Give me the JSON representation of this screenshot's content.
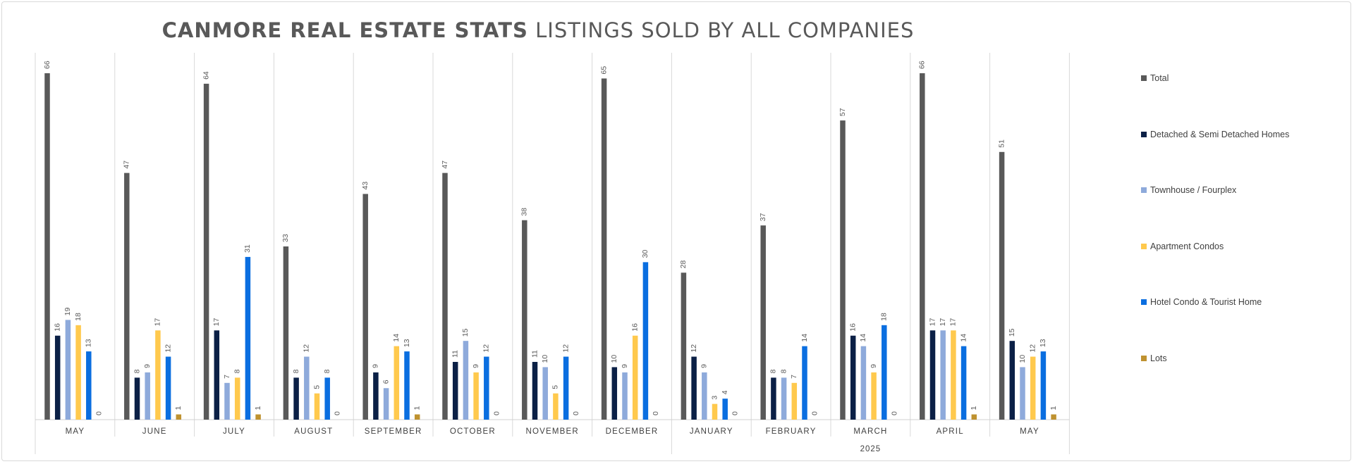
{
  "chart_data": {
    "type": "bar",
    "title": "CANMORE REAL ESTATE STATS",
    "subtitle": "LISTINGS SOLD BY ALL COMPANIES",
    "categories": [
      "MAY",
      "JUNE",
      "JULY",
      "AUGUST",
      "SEPTEMBER",
      "OCTOBER",
      "NOVEMBER",
      "DECEMBER",
      "JANUARY",
      "FEBRUARY",
      "MARCH",
      "APRIL",
      "MAY"
    ],
    "year_group_label": "2025",
    "ylim": [
      0,
      70
    ],
    "grid": false,
    "legend_position": "right",
    "series": [
      {
        "name": "Total",
        "color": "#595959",
        "values": [
          66,
          47,
          64,
          33,
          43,
          47,
          38,
          65,
          28,
          37,
          57,
          66,
          51
        ]
      },
      {
        "name": "Detached & Semi Detached Homes",
        "color": "#0b2046",
        "values": [
          16,
          8,
          17,
          8,
          9,
          11,
          11,
          10,
          12,
          8,
          16,
          17,
          15
        ]
      },
      {
        "name": "Townhouse / Fourplex",
        "color": "#8eaadb",
        "values": [
          19,
          9,
          7,
          12,
          6,
          15,
          10,
          9,
          9,
          8,
          14,
          17,
          10
        ]
      },
      {
        "name": "Apartment Condos",
        "color": "#ffc94d",
        "values": [
          18,
          17,
          8,
          5,
          14,
          9,
          5,
          16,
          3,
          7,
          9,
          17,
          12
        ]
      },
      {
        "name": "Hotel Condo & Tourist Home",
        "color": "#0a6ee0",
        "values": [
          13,
          12,
          31,
          8,
          13,
          12,
          12,
          30,
          4,
          14,
          18,
          14,
          13
        ]
      },
      {
        "name": "Lots",
        "color": "#bf9230",
        "values": [
          0,
          1,
          1,
          0,
          1,
          0,
          0,
          0,
          0,
          0,
          0,
          1,
          1
        ]
      }
    ]
  }
}
